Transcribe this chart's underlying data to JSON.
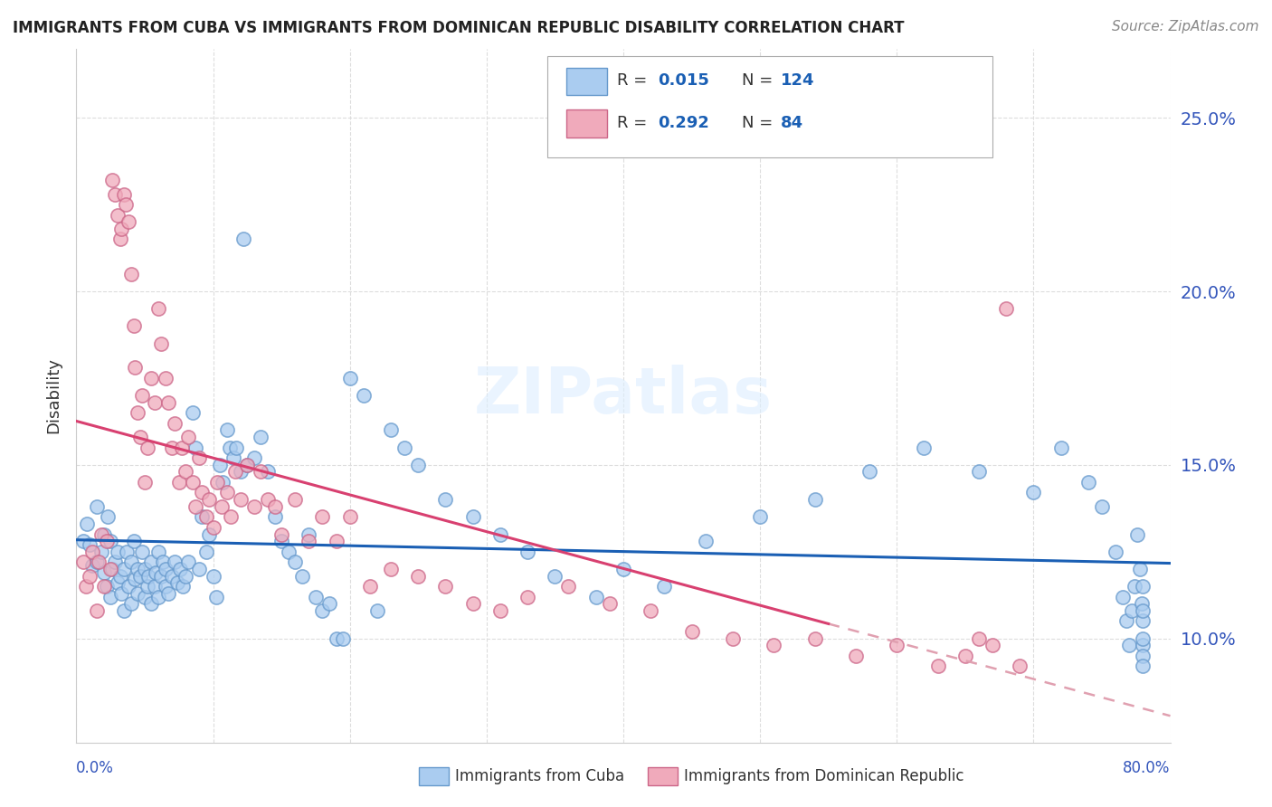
{
  "title": "IMMIGRANTS FROM CUBA VS IMMIGRANTS FROM DOMINICAN REPUBLIC DISABILITY CORRELATION CHART",
  "source": "Source: ZipAtlas.com",
  "ylabel": "Disability",
  "ytick_values": [
    0.1,
    0.15,
    0.2,
    0.25
  ],
  "xlim": [
    0.0,
    0.8
  ],
  "ylim": [
    0.07,
    0.27
  ],
  "cuba_color": "#aaccf0",
  "cuba_edge_color": "#6699cc",
  "dr_color": "#f0aabb",
  "dr_edge_color": "#cc6688",
  "cuba_line_color": "#1a5fb4",
  "dr_line_color": "#d84070",
  "dr_line_dashed_color": "#e0a0b0",
  "background_color": "#ffffff",
  "grid_color": "#dddddd",
  "title_color": "#222222",
  "right_axis_color": "#3355bb",
  "cuba_R": 0.015,
  "cuba_N": 124,
  "dr_R": 0.292,
  "dr_N": 84,
  "cuba_x": [
    0.005,
    0.008,
    0.01,
    0.012,
    0.015,
    0.015,
    0.018,
    0.02,
    0.02,
    0.022,
    0.023,
    0.025,
    0.025,
    0.026,
    0.028,
    0.03,
    0.03,
    0.032,
    0.033,
    0.035,
    0.035,
    0.037,
    0.038,
    0.04,
    0.04,
    0.042,
    0.043,
    0.045,
    0.045,
    0.047,
    0.048,
    0.05,
    0.05,
    0.052,
    0.053,
    0.055,
    0.055,
    0.057,
    0.058,
    0.06,
    0.06,
    0.062,
    0.063,
    0.065,
    0.065,
    0.067,
    0.07,
    0.072,
    0.074,
    0.076,
    0.078,
    0.08,
    0.082,
    0.085,
    0.087,
    0.09,
    0.092,
    0.095,
    0.097,
    0.1,
    0.102,
    0.105,
    0.107,
    0.11,
    0.112,
    0.115,
    0.117,
    0.12,
    0.122,
    0.125,
    0.13,
    0.135,
    0.14,
    0.145,
    0.15,
    0.155,
    0.16,
    0.165,
    0.17,
    0.175,
    0.18,
    0.185,
    0.19,
    0.195,
    0.2,
    0.21,
    0.22,
    0.23,
    0.24,
    0.25,
    0.27,
    0.29,
    0.31,
    0.33,
    0.35,
    0.38,
    0.4,
    0.43,
    0.46,
    0.5,
    0.54,
    0.58,
    0.62,
    0.66,
    0.7,
    0.72,
    0.74,
    0.75,
    0.76,
    0.765,
    0.768,
    0.77,
    0.772,
    0.774,
    0.776,
    0.778,
    0.779,
    0.78,
    0.78,
    0.78,
    0.78,
    0.78,
    0.78,
    0.78
  ],
  "cuba_y": [
    0.128,
    0.133,
    0.127,
    0.121,
    0.138,
    0.122,
    0.125,
    0.119,
    0.13,
    0.115,
    0.135,
    0.112,
    0.128,
    0.12,
    0.122,
    0.116,
    0.125,
    0.118,
    0.113,
    0.12,
    0.108,
    0.125,
    0.115,
    0.122,
    0.11,
    0.128,
    0.117,
    0.12,
    0.113,
    0.118,
    0.125,
    0.112,
    0.12,
    0.115,
    0.118,
    0.11,
    0.122,
    0.115,
    0.119,
    0.112,
    0.125,
    0.118,
    0.122,
    0.115,
    0.12,
    0.113,
    0.118,
    0.122,
    0.116,
    0.12,
    0.115,
    0.118,
    0.122,
    0.165,
    0.155,
    0.12,
    0.135,
    0.125,
    0.13,
    0.118,
    0.112,
    0.15,
    0.145,
    0.16,
    0.155,
    0.152,
    0.155,
    0.148,
    0.215,
    0.15,
    0.152,
    0.158,
    0.148,
    0.135,
    0.128,
    0.125,
    0.122,
    0.118,
    0.13,
    0.112,
    0.108,
    0.11,
    0.1,
    0.1,
    0.175,
    0.17,
    0.108,
    0.16,
    0.155,
    0.15,
    0.14,
    0.135,
    0.13,
    0.125,
    0.118,
    0.112,
    0.12,
    0.115,
    0.128,
    0.135,
    0.14,
    0.148,
    0.155,
    0.148,
    0.142,
    0.155,
    0.145,
    0.138,
    0.125,
    0.112,
    0.105,
    0.098,
    0.108,
    0.115,
    0.13,
    0.12,
    0.11,
    0.105,
    0.098,
    0.095,
    0.1,
    0.092,
    0.108,
    0.115
  ],
  "dr_x": [
    0.005,
    0.007,
    0.01,
    0.012,
    0.015,
    0.016,
    0.018,
    0.02,
    0.022,
    0.025,
    0.026,
    0.028,
    0.03,
    0.032,
    0.033,
    0.035,
    0.036,
    0.038,
    0.04,
    0.042,
    0.043,
    0.045,
    0.047,
    0.048,
    0.05,
    0.052,
    0.055,
    0.057,
    0.06,
    0.062,
    0.065,
    0.067,
    0.07,
    0.072,
    0.075,
    0.077,
    0.08,
    0.082,
    0.085,
    0.087,
    0.09,
    0.092,
    0.095,
    0.097,
    0.1,
    0.103,
    0.106,
    0.11,
    0.113,
    0.116,
    0.12,
    0.125,
    0.13,
    0.135,
    0.14,
    0.145,
    0.15,
    0.16,
    0.17,
    0.18,
    0.19,
    0.2,
    0.215,
    0.23,
    0.25,
    0.27,
    0.29,
    0.31,
    0.33,
    0.36,
    0.39,
    0.42,
    0.45,
    0.48,
    0.51,
    0.54,
    0.57,
    0.6,
    0.63,
    0.65,
    0.66,
    0.67,
    0.68,
    0.69
  ],
  "dr_y": [
    0.122,
    0.115,
    0.118,
    0.125,
    0.108,
    0.122,
    0.13,
    0.115,
    0.128,
    0.12,
    0.232,
    0.228,
    0.222,
    0.215,
    0.218,
    0.228,
    0.225,
    0.22,
    0.205,
    0.19,
    0.178,
    0.165,
    0.158,
    0.17,
    0.145,
    0.155,
    0.175,
    0.168,
    0.195,
    0.185,
    0.175,
    0.168,
    0.155,
    0.162,
    0.145,
    0.155,
    0.148,
    0.158,
    0.145,
    0.138,
    0.152,
    0.142,
    0.135,
    0.14,
    0.132,
    0.145,
    0.138,
    0.142,
    0.135,
    0.148,
    0.14,
    0.15,
    0.138,
    0.148,
    0.14,
    0.138,
    0.13,
    0.14,
    0.128,
    0.135,
    0.128,
    0.135,
    0.115,
    0.12,
    0.118,
    0.115,
    0.11,
    0.108,
    0.112,
    0.115,
    0.11,
    0.108,
    0.102,
    0.1,
    0.098,
    0.1,
    0.095,
    0.098,
    0.092,
    0.095,
    0.1,
    0.098,
    0.195,
    0.092
  ]
}
